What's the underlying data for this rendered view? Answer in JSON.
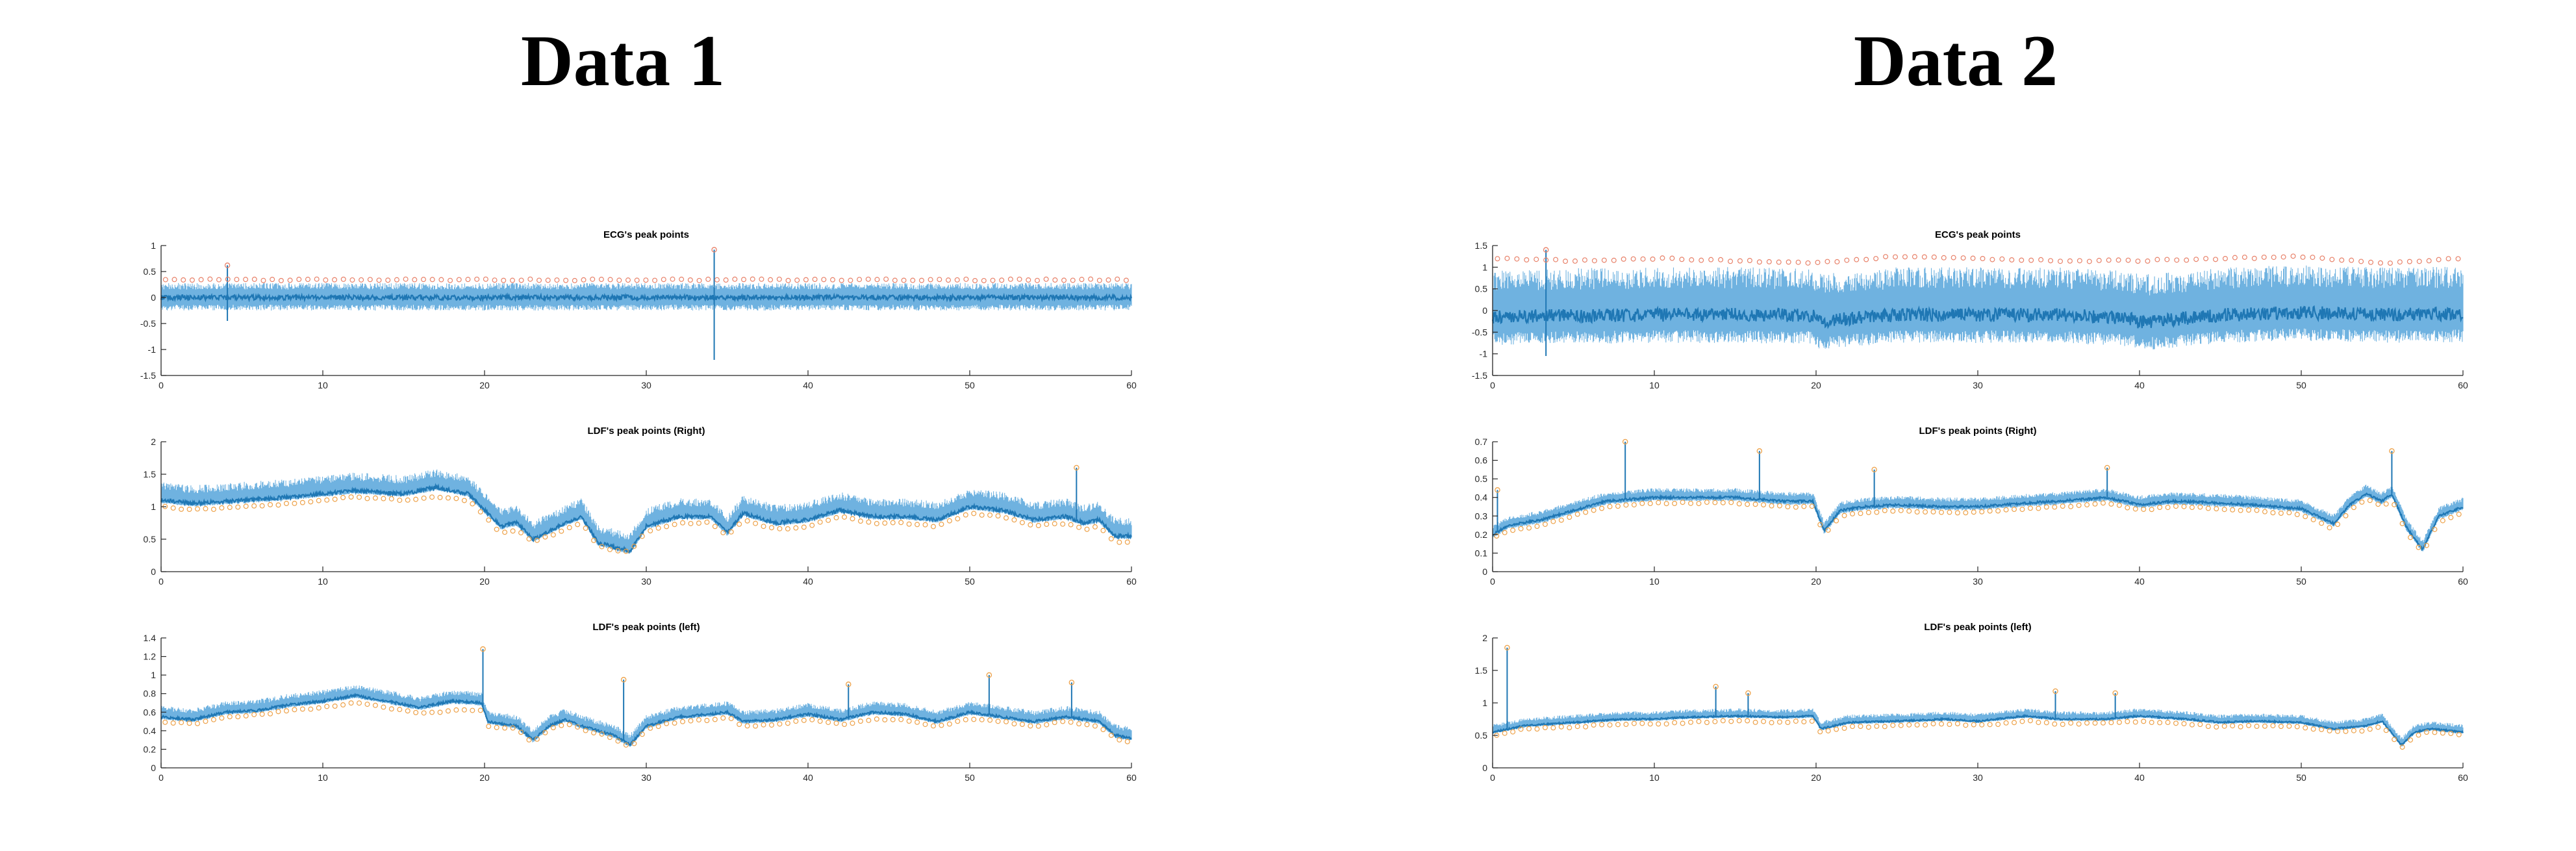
{
  "columns": [
    {
      "title": "Data 1"
    },
    {
      "title": "Data 2"
    }
  ],
  "colors": {
    "signal": "#1f77b4",
    "signal_light": "#6fb2e0",
    "peak_marker_ecg": "#e8826a",
    "peak_marker_ldf": "#eda24a",
    "axis": "#262626"
  },
  "chart_data": [
    {
      "id": "d1-ecg",
      "type": "line",
      "title": "ECG's peak points",
      "xlim": [
        0,
        60
      ],
      "ylim": [
        -1.5,
        1
      ],
      "xticks": [
        0,
        10,
        20,
        30,
        40,
        50,
        60
      ],
      "yticks": [
        -1.5,
        -1,
        -0.5,
        0,
        0.5,
        1
      ],
      "yticklabels": [
        "-1.5",
        "-1",
        "-0.5",
        "0",
        "0.5",
        "1"
      ],
      "series": [
        {
          "role": "signal",
          "baseline_x": [
            0,
            10,
            20,
            30,
            40,
            50,
            60
          ],
          "baseline_y": [
            0.0,
            0.0,
            0.0,
            0.0,
            0.0,
            0.0,
            0.0
          ],
          "band_low": -0.25,
          "band_high": 0.28,
          "spikes": [
            [
              4.1,
              0.62,
              -0.45
            ],
            [
              34.2,
              0.92,
              -1.2
            ]
          ]
        },
        {
          "role": "peaks",
          "marker": "circle",
          "baseline_x": [
            0,
            60
          ],
          "baseline_y": [
            0.34,
            0.34
          ],
          "spacing": 0.55
        }
      ]
    },
    {
      "id": "d1-ldf-right",
      "type": "line",
      "title": "LDF's peak points (Right)",
      "xlim": [
        0,
        60
      ],
      "ylim": [
        0,
        2
      ],
      "xticks": [
        0,
        10,
        20,
        30,
        40,
        50,
        60
      ],
      "yticks": [
        0,
        0.5,
        1,
        1.5,
        2
      ],
      "yticklabels": [
        "0",
        "0.5",
        "1",
        "1.5",
        "2"
      ],
      "series": [
        {
          "role": "signal",
          "baseline_x": [
            0,
            2,
            5,
            8,
            10,
            12,
            15,
            17,
            19,
            20,
            21,
            22,
            23,
            25,
            26,
            27,
            28,
            29,
            30,
            32,
            34,
            35,
            36,
            38,
            40,
            42,
            44,
            46,
            48,
            50,
            52,
            54,
            56,
            57,
            58,
            59,
            60
          ],
          "baseline_y": [
            1.1,
            1.05,
            1.1,
            1.15,
            1.2,
            1.25,
            1.2,
            1.3,
            1.2,
            0.95,
            0.7,
            0.75,
            0.5,
            0.75,
            0.85,
            0.45,
            0.38,
            0.32,
            0.7,
            0.85,
            0.85,
            0.6,
            0.9,
            0.75,
            0.8,
            0.95,
            0.85,
            0.85,
            0.8,
            1.0,
            0.95,
            0.8,
            0.85,
            0.75,
            0.8,
            0.55,
            0.55
          ],
          "band_low": -0.05,
          "band_high": 0.28,
          "spikes": [
            [
              56.6,
              1.6,
              null
            ]
          ]
        },
        {
          "role": "peaks",
          "marker": "circle",
          "baseline_x": [
            0,
            2,
            5,
            8,
            10,
            12,
            15,
            17,
            19,
            20,
            21,
            22,
            23,
            25,
            26,
            27,
            28,
            29,
            30,
            32,
            34,
            35,
            36,
            38,
            40,
            42,
            44,
            46,
            48,
            50,
            52,
            54,
            56,
            57,
            58,
            59,
            60
          ],
          "baseline_y": [
            1.0,
            0.95,
            1.0,
            1.05,
            1.1,
            1.15,
            1.1,
            1.15,
            1.1,
            0.85,
            0.6,
            0.65,
            0.45,
            0.65,
            0.75,
            0.4,
            0.33,
            0.3,
            0.62,
            0.75,
            0.75,
            0.55,
            0.8,
            0.65,
            0.7,
            0.85,
            0.75,
            0.75,
            0.7,
            0.9,
            0.85,
            0.7,
            0.75,
            0.65,
            0.7,
            0.45,
            0.45
          ],
          "spacing": 0.5
        }
      ]
    },
    {
      "id": "d1-ldf-left",
      "type": "line",
      "title": "LDF's peak points (left)",
      "xlim": [
        0,
        60
      ],
      "ylim": [
        0,
        1.4
      ],
      "xticks": [
        0,
        10,
        20,
        30,
        40,
        50,
        60
      ],
      "yticks": [
        0,
        0.2,
        0.4,
        0.6,
        0.8,
        1,
        1.2,
        1.4
      ],
      "yticklabels": [
        "0",
        "0.2",
        "0.4",
        "0.6",
        "0.8",
        "1",
        "1.2",
        "1.4"
      ],
      "series": [
        {
          "role": "signal",
          "baseline_x": [
            0,
            2,
            4,
            6,
            8,
            10,
            12,
            14,
            16,
            18,
            19.8,
            20.2,
            22,
            23,
            24,
            25,
            26,
            27,
            28,
            29,
            30,
            32,
            34,
            35,
            36,
            38,
            40,
            42,
            44,
            46,
            48,
            50,
            52,
            54,
            56,
            58,
            59,
            60
          ],
          "baseline_y": [
            0.55,
            0.52,
            0.6,
            0.62,
            0.68,
            0.72,
            0.78,
            0.72,
            0.65,
            0.72,
            0.7,
            0.5,
            0.45,
            0.3,
            0.45,
            0.52,
            0.45,
            0.4,
            0.35,
            0.25,
            0.45,
            0.55,
            0.58,
            0.6,
            0.5,
            0.52,
            0.58,
            0.52,
            0.6,
            0.58,
            0.5,
            0.6,
            0.55,
            0.5,
            0.55,
            0.5,
            0.35,
            0.32
          ],
          "band_low": -0.03,
          "band_high": 0.12,
          "spikes": [
            [
              19.9,
              1.28,
              null
            ],
            [
              28.6,
              0.95,
              null
            ],
            [
              42.5,
              0.9,
              null
            ],
            [
              51.2,
              1.0,
              null
            ],
            [
              56.3,
              0.92,
              null
            ]
          ]
        },
        {
          "role": "peaks",
          "marker": "circle",
          "baseline_x": [
            0,
            2,
            4,
            6,
            8,
            10,
            12,
            14,
            16,
            18,
            19.8,
            20.2,
            22,
            23,
            24,
            25,
            26,
            27,
            28,
            29,
            30,
            32,
            34,
            35,
            36,
            38,
            40,
            42,
            44,
            46,
            48,
            50,
            52,
            54,
            56,
            58,
            59,
            60
          ],
          "baseline_y": [
            0.5,
            0.47,
            0.55,
            0.57,
            0.62,
            0.65,
            0.7,
            0.65,
            0.58,
            0.62,
            0.62,
            0.45,
            0.42,
            0.27,
            0.42,
            0.48,
            0.42,
            0.37,
            0.32,
            0.22,
            0.42,
            0.5,
            0.52,
            0.55,
            0.45,
            0.47,
            0.52,
            0.47,
            0.52,
            0.52,
            0.45,
            0.52,
            0.5,
            0.45,
            0.5,
            0.45,
            0.31,
            0.28
          ],
          "spacing": 0.5
        }
      ]
    },
    {
      "id": "d2-ecg",
      "type": "line",
      "title": "ECG's peak points",
      "xlim": [
        0,
        60
      ],
      "ylim": [
        -1.5,
        1.5
      ],
      "xticks": [
        0,
        10,
        20,
        30,
        40,
        50,
        60
      ],
      "yticks": [
        -1.5,
        -1,
        -0.5,
        0,
        0.5,
        1,
        1.5
      ],
      "yticklabels": [
        "-1.5",
        "-1",
        "-0.5",
        "0",
        "0.5",
        "1",
        "1.5"
      ],
      "series": [
        {
          "role": "signal",
          "baseline_x": [
            0,
            5,
            10,
            15,
            19.8,
            20.2,
            25,
            30,
            35,
            39.5,
            40,
            45,
            50,
            55,
            60
          ],
          "baseline_y": [
            -0.15,
            -0.12,
            -0.1,
            -0.1,
            -0.12,
            -0.25,
            -0.1,
            -0.1,
            -0.1,
            -0.18,
            -0.28,
            -0.1,
            -0.05,
            -0.1,
            -0.08
          ],
          "band_low": -0.65,
          "band_high": 1.1,
          "spikes": [
            [
              3.3,
              1.4,
              -1.05
            ]
          ]
        },
        {
          "role": "peaks",
          "marker": "circle",
          "baseline_x": [
            0,
            5,
            10,
            15,
            20,
            25,
            30,
            35,
            40,
            45,
            50,
            55,
            60
          ],
          "baseline_y": [
            1.2,
            1.15,
            1.2,
            1.15,
            1.1,
            1.25,
            1.2,
            1.15,
            1.15,
            1.2,
            1.25,
            1.1,
            1.2
          ],
          "spacing": 0.6
        }
      ]
    },
    {
      "id": "d2-ldf-right",
      "type": "line",
      "title": "LDF's peak points (Right)",
      "xlim": [
        0,
        60
      ],
      "ylim": [
        0,
        0.7
      ],
      "xticks": [
        0,
        10,
        20,
        30,
        40,
        50,
        60
      ],
      "yticks": [
        0,
        0.1,
        0.2,
        0.3,
        0.4,
        0.5,
        0.6,
        0.7
      ],
      "yticklabels": [
        "0",
        "0.1",
        "0.2",
        "0.3",
        "0.4",
        "0.5",
        "0.6",
        "0.7"
      ],
      "series": [
        {
          "role": "signal",
          "baseline_x": [
            0,
            1,
            3,
            5,
            7,
            10,
            12,
            15,
            18,
            19.8,
            20.5,
            21.5,
            23,
            25,
            28,
            30,
            33,
            35,
            38,
            40,
            42,
            45,
            47,
            50,
            52,
            53,
            54,
            55,
            55.6,
            56.5,
            57.5,
            58.5,
            60
          ],
          "baseline_y": [
            0.2,
            0.25,
            0.28,
            0.33,
            0.38,
            0.4,
            0.4,
            0.4,
            0.38,
            0.38,
            0.22,
            0.33,
            0.35,
            0.36,
            0.35,
            0.35,
            0.37,
            0.38,
            0.4,
            0.36,
            0.38,
            0.37,
            0.36,
            0.34,
            0.26,
            0.36,
            0.42,
            0.38,
            0.42,
            0.24,
            0.12,
            0.3,
            0.35
          ],
          "band_low": -0.02,
          "band_high": 0.05,
          "spikes": [
            [
              8.2,
              0.7,
              null
            ],
            [
              16.5,
              0.65,
              null
            ],
            [
              23.6,
              0.55,
              null
            ],
            [
              38,
              0.56,
              null
            ],
            [
              55.6,
              0.65,
              null
            ],
            [
              0.3,
              0.44,
              null
            ]
          ]
        },
        {
          "role": "peaks",
          "marker": "circle",
          "baseline_x": [
            0,
            1,
            3,
            5,
            7,
            10,
            12,
            15,
            18,
            19.8,
            20.5,
            21.5,
            23,
            25,
            28,
            30,
            33,
            35,
            38,
            40,
            42,
            45,
            47,
            50,
            52,
            53,
            54,
            55,
            55.6,
            56.5,
            57.5,
            58.5,
            60
          ],
          "baseline_y": [
            0.18,
            0.22,
            0.25,
            0.3,
            0.35,
            0.37,
            0.37,
            0.37,
            0.35,
            0.35,
            0.2,
            0.3,
            0.32,
            0.33,
            0.32,
            0.32,
            0.34,
            0.35,
            0.37,
            0.33,
            0.35,
            0.34,
            0.33,
            0.31,
            0.23,
            0.33,
            0.39,
            0.35,
            0.39,
            0.21,
            0.1,
            0.27,
            0.32
          ],
          "spacing": 0.5
        }
      ]
    },
    {
      "id": "d2-ldf-left",
      "type": "line",
      "title": "LDF's peak points (left)",
      "xlim": [
        0,
        60
      ],
      "ylim": [
        0,
        2
      ],
      "xticks": [
        0,
        10,
        20,
        30,
        40,
        50,
        60
      ],
      "yticks": [
        0,
        0.5,
        1,
        1.5,
        2
      ],
      "yticklabels": [
        "0",
        "0.5",
        "1",
        "1.5",
        "2"
      ],
      "series": [
        {
          "role": "signal",
          "baseline_x": [
            0,
            2,
            5,
            8,
            10,
            12,
            15,
            18,
            19.8,
            20.3,
            22,
            25,
            28,
            30,
            33,
            35,
            38,
            40,
            43,
            45,
            47,
            50,
            52,
            54,
            55,
            56.2,
            57,
            58,
            60
          ],
          "baseline_y": [
            0.55,
            0.65,
            0.7,
            0.75,
            0.75,
            0.78,
            0.8,
            0.78,
            0.8,
            0.6,
            0.7,
            0.72,
            0.75,
            0.72,
            0.8,
            0.75,
            0.75,
            0.8,
            0.75,
            0.7,
            0.72,
            0.7,
            0.6,
            0.65,
            0.72,
            0.35,
            0.55,
            0.6,
            0.55
          ],
          "band_low": -0.03,
          "band_high": 0.12,
          "spikes": [
            [
              0.9,
              1.85,
              null
            ],
            [
              13.8,
              1.25,
              null
            ],
            [
              15.8,
              1.15,
              null
            ],
            [
              34.8,
              1.18,
              null
            ],
            [
              38.5,
              1.15,
              null
            ]
          ]
        },
        {
          "role": "peaks",
          "marker": "circle",
          "baseline_x": [
            0,
            2,
            5,
            8,
            10,
            12,
            15,
            18,
            19.8,
            20.3,
            22,
            25,
            28,
            30,
            33,
            35,
            38,
            40,
            43,
            45,
            47,
            50,
            52,
            54,
            55,
            56.2,
            57,
            58,
            60
          ],
          "baseline_y": [
            0.5,
            0.6,
            0.63,
            0.68,
            0.68,
            0.7,
            0.72,
            0.7,
            0.72,
            0.55,
            0.63,
            0.65,
            0.68,
            0.65,
            0.72,
            0.68,
            0.68,
            0.72,
            0.68,
            0.63,
            0.65,
            0.63,
            0.55,
            0.58,
            0.65,
            0.31,
            0.5,
            0.55,
            0.5
          ],
          "spacing": 0.5
        }
      ]
    }
  ]
}
